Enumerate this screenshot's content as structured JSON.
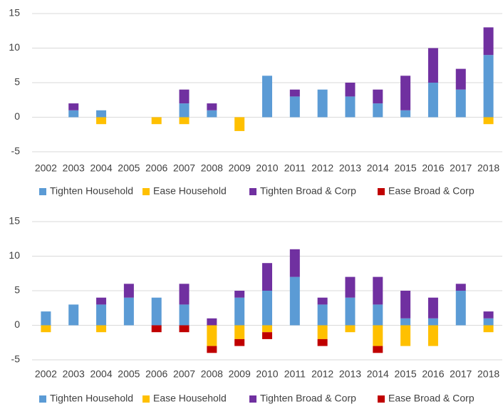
{
  "chart_data": [
    {
      "type": "bar",
      "stacked": true,
      "categories": [
        "2002",
        "2003",
        "2004",
        "2005",
        "2006",
        "2007",
        "2008",
        "2009",
        "2010",
        "2011",
        "2012",
        "2013",
        "2014",
        "2015",
        "2016",
        "2017",
        "2018"
      ],
      "series": [
        {
          "name": "Tighten Household",
          "color": "#5b9bd5",
          "values": [
            0,
            1,
            1,
            0,
            0,
            2,
            1,
            0,
            6,
            3,
            4,
            3,
            2,
            1,
            5,
            4,
            9
          ]
        },
        {
          "name": "Ease Household",
          "color": "#ffc000",
          "values": [
            0,
            0,
            -1,
            0,
            -1,
            -1,
            0,
            -2,
            0,
            0,
            0,
            0,
            0,
            0,
            0,
            0,
            -1
          ]
        },
        {
          "name": "Tighten Broad & Corp",
          "color": "#7030a0",
          "values": [
            0,
            1,
            0,
            0,
            0,
            2,
            1,
            0,
            0,
            1,
            0,
            2,
            2,
            5,
            5,
            3,
            4
          ]
        },
        {
          "name": "Ease Broad & Corp",
          "color": "#c00000",
          "values": [
            0,
            0,
            0,
            0,
            0,
            0,
            0,
            0,
            0,
            0,
            0,
            0,
            0,
            0,
            0,
            0,
            0
          ]
        }
      ],
      "ylim": [
        -5,
        15
      ],
      "yticks": [
        -5,
        0,
        5,
        10,
        15
      ],
      "grid": true,
      "legend": "bottom"
    },
    {
      "type": "bar",
      "stacked": true,
      "categories": [
        "2002",
        "2003",
        "2004",
        "2005",
        "2006",
        "2007",
        "2008",
        "2009",
        "2010",
        "2011",
        "2012",
        "2013",
        "2014",
        "2015",
        "2016",
        "2017",
        "2018"
      ],
      "series": [
        {
          "name": "Tighten Household",
          "color": "#5b9bd5",
          "values": [
            2,
            3,
            3,
            4,
            4,
            3,
            0,
            4,
            5,
            7,
            3,
            4,
            3,
            1,
            1,
            5,
            1
          ]
        },
        {
          "name": "Ease Household",
          "color": "#ffc000",
          "values": [
            -1,
            0,
            -1,
            0,
            0,
            0,
            -3,
            -2,
            -1,
            0,
            -2,
            -1,
            -3,
            -3,
            -3,
            0,
            -1
          ]
        },
        {
          "name": "Tighten Broad & Corp",
          "color": "#7030a0",
          "values": [
            0,
            0,
            1,
            2,
            0,
            3,
            1,
            1,
            4,
            4,
            1,
            3,
            4,
            4,
            3,
            1,
            1
          ]
        },
        {
          "name": "Ease Broad & Corp",
          "color": "#c00000",
          "values": [
            0,
            0,
            0,
            0,
            -1,
            -1,
            -1,
            -1,
            -1,
            0,
            -1,
            0,
            -1,
            0,
            0,
            0,
            0
          ]
        }
      ],
      "ylim": [
        -5,
        15
      ],
      "yticks": [
        -5,
        0,
        5,
        10,
        15
      ],
      "grid": true,
      "legend": "bottom"
    }
  ]
}
